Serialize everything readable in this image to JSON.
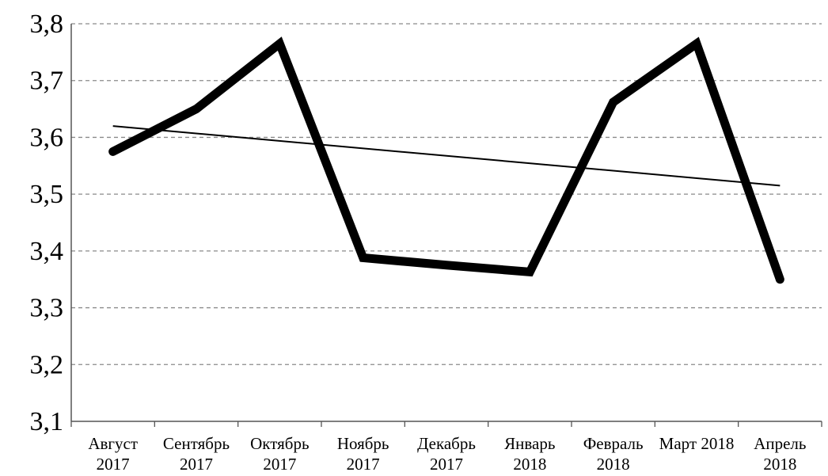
{
  "chart_data": {
    "type": "line",
    "title": "",
    "xlabel": "",
    "ylabel": "",
    "categories": [
      [
        "Август",
        "2017"
      ],
      [
        "Сентябрь",
        "2017"
      ],
      [
        "Октябрь",
        "2017"
      ],
      [
        "Ноябрь",
        "2017"
      ],
      [
        "Декабрь",
        "2017"
      ],
      [
        "Январь",
        "2018"
      ],
      [
        "Февраль",
        "2018"
      ],
      [
        "Март 2018"
      ],
      [
        "Апрель",
        "2018"
      ]
    ],
    "series": [
      {
        "values": [
          3.575,
          3.65,
          3.765,
          3.388,
          3.375,
          3.363,
          3.662,
          3.765,
          3.35
        ],
        "color": "#000000",
        "style": "thick"
      }
    ],
    "trendline": {
      "type": "linear",
      "start": 3.62,
      "end": 3.515,
      "color": "#000000",
      "style": "thin"
    },
    "ylim": [
      3.1,
      3.8
    ],
    "yticks": [
      "3,1",
      "3,2",
      "3,3",
      "3,4",
      "3,5",
      "3,6",
      "3,7",
      "3,8"
    ],
    "ytick_values": [
      3.1,
      3.2,
      3.3,
      3.4,
      3.5,
      3.6,
      3.7,
      3.8
    ],
    "grid": "horizontal-dashed",
    "legend": "none"
  }
}
